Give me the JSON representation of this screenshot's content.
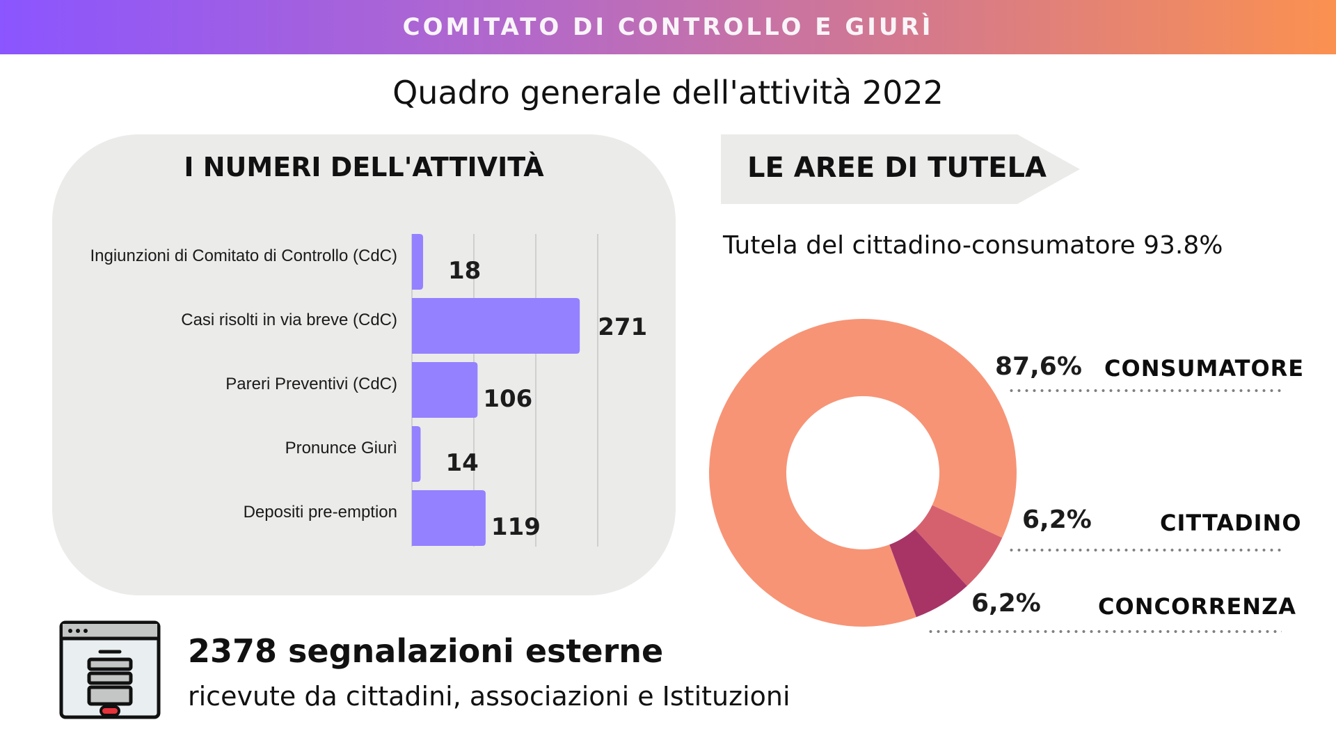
{
  "header": {
    "title": "COMITATO DI CONTROLLO E GIURÌ"
  },
  "main_title": "Quadro generale dell'attività 2022",
  "left_panel": {
    "title": "I NUMERI DELL'ATTIVITÀ"
  },
  "right_panel": {
    "title": "LE AREE DI TUTELA",
    "subtitle": "Tutela del cittadino-consumatore 93.8%"
  },
  "footer_stat": {
    "title": "2378 segnalazioni esterne",
    "subtitle": "ricevute da cittadini, associazioni e Istituzioni",
    "icon": "web-form-icon"
  },
  "colors": {
    "bar": "#9381ff",
    "consumatore": "#f79476",
    "cittadino": "#d5616f",
    "concorrenza": "#a83466",
    "gridline": "#c6c6c6"
  },
  "chart_data": [
    {
      "type": "bar",
      "orientation": "horizontal",
      "title": "I NUMERI DELL'ATTIVITÀ",
      "categories": [
        "Ingiunzioni di Comitato di Controllo (CdC)",
        "Casi risolti in via breve (CdC)",
        "Pareri Preventivi (CdC)",
        "Pronunce Giurì",
        "Depositi pre-emption"
      ],
      "values": [
        18,
        271,
        106,
        14,
        119
      ],
      "value_labels": [
        "18",
        "271",
        "106",
        "14",
        "119"
      ],
      "xlim": [
        0,
        300
      ],
      "gridlines": [
        100,
        200,
        300
      ],
      "grid": true,
      "xlabel": "",
      "ylabel": ""
    },
    {
      "type": "pie",
      "variant": "donut",
      "title": "LE AREE DI TUTELA",
      "subtitle": "Tutela del cittadino-consumatore 93.8%",
      "slices": [
        {
          "name": "CONSUMATORE",
          "value": 87.6,
          "label": "87,6%"
        },
        {
          "name": "CITTADINO",
          "value": 6.2,
          "label": "6,2%"
        },
        {
          "name": "CONCORRENZA",
          "value": 6.2,
          "label": "6,2%"
        }
      ],
      "legend": "right"
    }
  ]
}
